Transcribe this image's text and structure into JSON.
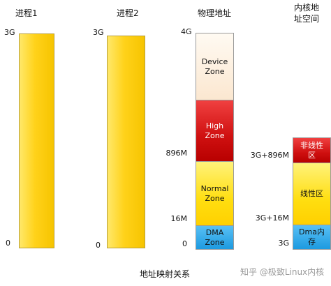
{
  "process1": {
    "title": "进程1",
    "top": "3G",
    "bottom": "0"
  },
  "process2": {
    "title": "进程2",
    "top": "3G",
    "bottom": "0"
  },
  "physical": {
    "title": "物理地址",
    "top": "4G",
    "mark_896": "896M",
    "mark_16": "16M",
    "bottom": "0",
    "zones": {
      "device": [
        "Device",
        "Zone"
      ],
      "high": [
        "High",
        "Zone"
      ],
      "normal": [
        "Normal",
        "Zone"
      ],
      "dma": [
        "DMA",
        "Zone"
      ]
    }
  },
  "kernel": {
    "title_line1": "内核地",
    "title_line2": "址空间",
    "mark_896": "3G+896M",
    "mark_16": "3G+16M",
    "bottom": "3G",
    "zones": {
      "nonlinear": [
        "非线性",
        "区"
      ],
      "linear": [
        "线性区"
      ],
      "dma": [
        "Dma内",
        "存"
      ]
    }
  },
  "caption": "地址映射关系",
  "watermark": "知乎 @极致Linux内核",
  "colors": {
    "bar": "#ffd21a",
    "device": "#fbe7d0",
    "high": "#cf1010",
    "normal": "#ffde10",
    "dma": "#1d9ae0"
  }
}
